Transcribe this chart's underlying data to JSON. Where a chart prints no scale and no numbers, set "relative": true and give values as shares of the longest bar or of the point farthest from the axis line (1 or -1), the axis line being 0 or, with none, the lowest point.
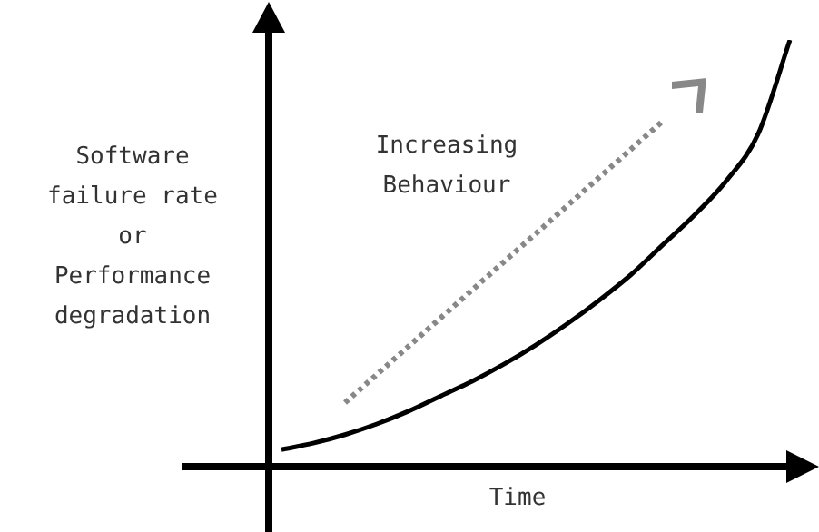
{
  "chart_data": {
    "type": "line",
    "relative": true,
    "xlabel": "Time",
    "ylabel": "Software failure rate or Performance degradation",
    "annotations": [
      "Increasing Behaviour"
    ],
    "categories": [
      null,
      null,
      null,
      null,
      null,
      null,
      null,
      null,
      null,
      null,
      null,
      null,
      null,
      null,
      null,
      null,
      null
    ],
    "series": [
      {
        "color": "#000000",
        "line_style": "solid",
        "values": [
          0.04,
          0.055,
          0.075,
          0.1,
          0.13,
          0.165,
          0.2,
          0.24,
          0.285,
          0.335,
          0.39,
          0.45,
          0.52,
          0.59,
          0.67,
          0.78,
          1
        ]
      },
      {
        "color": "#888888",
        "line_style": "dotted",
        "values": [
          null,
          null,
          0.15,
          null,
          null,
          null,
          null,
          null,
          null,
          null,
          null,
          null,
          0.81,
          null,
          null,
          null,
          null
        ]
      }
    ]
  }
}
